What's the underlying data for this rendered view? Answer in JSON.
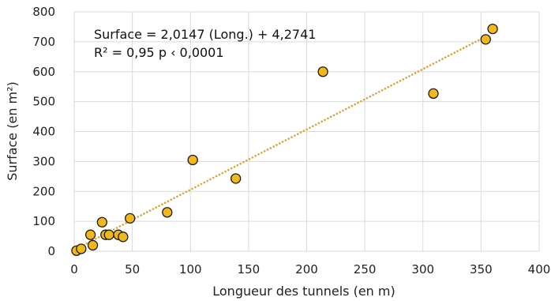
{
  "chart_data": {
    "type": "scatter",
    "title": "",
    "xlabel": "Longueur des tunnels (en m)",
    "ylabel": "Surface (en m²)",
    "xlim": [
      0,
      400
    ],
    "ylim": [
      0,
      800
    ],
    "x_ticks": [
      "0",
      "50",
      "100",
      "150",
      "200",
      "250",
      "300",
      "350",
      "400"
    ],
    "y_ticks": [
      "0",
      "100",
      "200",
      "300",
      "400",
      "500",
      "600",
      "700",
      "800"
    ],
    "grid": true,
    "annotation_line1": "Surface = 2,0147 (Long.) + 4,2741",
    "annotation_line2": "R² = 0,95 p ‹ 0,0001",
    "trendline": {
      "slope": 2.0147,
      "intercept": 4.2741,
      "x_range": [
        3,
        358
      ]
    },
    "series": [
      {
        "points": [
          {
            "x": 2,
            "y": 2
          },
          {
            "x": 6,
            "y": 8
          },
          {
            "x": 14,
            "y": 55
          },
          {
            "x": 16,
            "y": 20
          },
          {
            "x": 24,
            "y": 97
          },
          {
            "x": 27,
            "y": 55
          },
          {
            "x": 30,
            "y": 55
          },
          {
            "x": 38,
            "y": 55
          },
          {
            "x": 42,
            "y": 48
          },
          {
            "x": 48,
            "y": 110
          },
          {
            "x": 80,
            "y": 130
          },
          {
            "x": 102,
            "y": 305
          },
          {
            "x": 139,
            "y": 243
          },
          {
            "x": 214,
            "y": 600
          },
          {
            "x": 309,
            "y": 527
          },
          {
            "x": 354,
            "y": 708
          },
          {
            "x": 360,
            "y": 743
          }
        ]
      }
    ]
  },
  "colors": {
    "marker_fill": "#f2b81a",
    "marker_stroke": "#1a1a1a",
    "trendline": "#d9a53a",
    "grid": "#d9d9d9"
  }
}
